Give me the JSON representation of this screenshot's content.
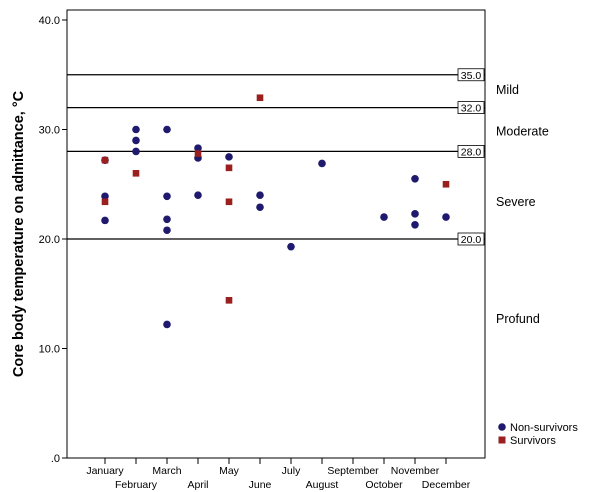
{
  "chart_data": {
    "type": "scatter",
    "title": "",
    "xlabel": "",
    "ylabel": "Core body temperature on admittance, °C",
    "categories": [
      "January",
      "February",
      "March",
      "April",
      "May",
      "June",
      "July",
      "August",
      "September",
      "October",
      "November",
      "December"
    ],
    "ylim": [
      0,
      40
    ],
    "y_ticks": [
      ".0",
      "10.0",
      "20.0",
      "30.0",
      "40.0"
    ],
    "grid": false,
    "legend_position": "bottom-right",
    "reference_lines": [
      {
        "value": 35.0,
        "label": "35.0"
      },
      {
        "value": 32.0,
        "label": "32.0"
      },
      {
        "value": 28.0,
        "label": "28.0"
      },
      {
        "value": 20.0,
        "label": "20.0"
      }
    ],
    "zone_labels": [
      {
        "label": "Mild",
        "y": 33.6
      },
      {
        "label": "Moderate",
        "y": 29.8
      },
      {
        "label": "Severe",
        "y": 23.4
      },
      {
        "label": "Profund",
        "y": 12.7
      }
    ],
    "series": [
      {
        "name": "Non-survivors",
        "color": "#1f1a6e",
        "marker": "circle",
        "points": [
          {
            "x": "January",
            "y": 23.9
          },
          {
            "x": "January",
            "y": 21.7
          },
          {
            "x": "January",
            "y": 27.2
          },
          {
            "x": "February",
            "y": 30.0
          },
          {
            "x": "February",
            "y": 29.0
          },
          {
            "x": "February",
            "y": 28.0
          },
          {
            "x": "March",
            "y": 30.0
          },
          {
            "x": "March",
            "y": 23.9
          },
          {
            "x": "March",
            "y": 21.8
          },
          {
            "x": "March",
            "y": 20.8
          },
          {
            "x": "March",
            "y": 12.2
          },
          {
            "x": "April",
            "y": 28.3
          },
          {
            "x": "April",
            "y": 27.4
          },
          {
            "x": "April",
            "y": 24.0
          },
          {
            "x": "May",
            "y": 27.5
          },
          {
            "x": "June",
            "y": 24.0
          },
          {
            "x": "June",
            "y": 22.9
          },
          {
            "x": "July",
            "y": 19.3
          },
          {
            "x": "August",
            "y": 26.9
          },
          {
            "x": "October",
            "y": 22.0
          },
          {
            "x": "November",
            "y": 25.5
          },
          {
            "x": "November",
            "y": 22.3
          },
          {
            "x": "November",
            "y": 21.3
          },
          {
            "x": "December",
            "y": 22.0
          }
        ]
      },
      {
        "name": "Survivors",
        "color": "#9a1f1f",
        "marker": "square",
        "points": [
          {
            "x": "January",
            "y": 27.2
          },
          {
            "x": "January",
            "y": 23.4
          },
          {
            "x": "February",
            "y": 26.0
          },
          {
            "x": "April",
            "y": 27.8
          },
          {
            "x": "May",
            "y": 26.5
          },
          {
            "x": "May",
            "y": 23.4
          },
          {
            "x": "May",
            "y": 14.4
          },
          {
            "x": "June",
            "y": 32.9
          },
          {
            "x": "December",
            "y": 25.0
          }
        ]
      }
    ]
  }
}
